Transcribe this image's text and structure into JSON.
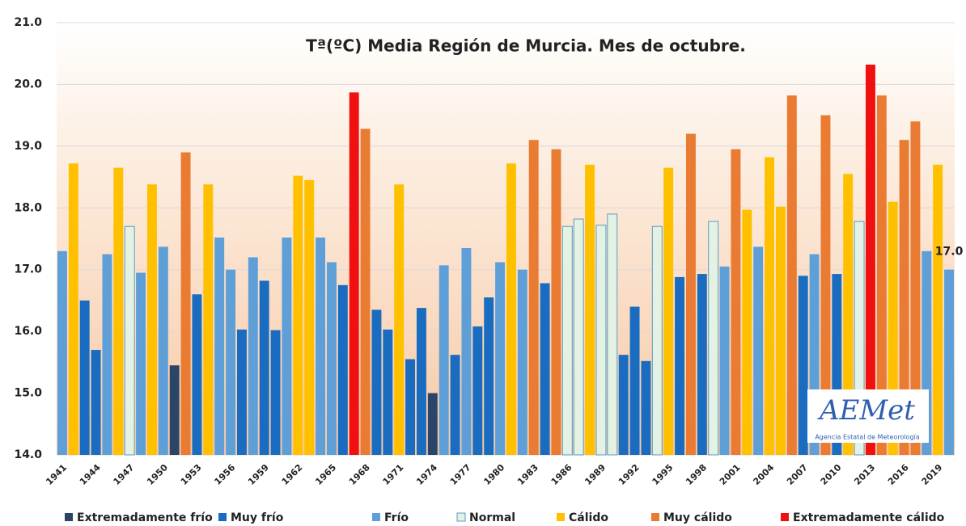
{
  "chart_data": {
    "type": "bar",
    "title": "Tª(ºC) Media Región de Murcia. Mes de octubre.",
    "categories": [
      "1941",
      null,
      null,
      "1944",
      null,
      null,
      "1947",
      null,
      null,
      "1950",
      null,
      null,
      "1953",
      null,
      null,
      "1956",
      null,
      null,
      "1959",
      null,
      null,
      "1962",
      null,
      null,
      "1965",
      null,
      null,
      "1968",
      null,
      null,
      "1971",
      null,
      null,
      "1974",
      null,
      null,
      "1977",
      null,
      null,
      "1980",
      null,
      null,
      "1983",
      null,
      null,
      "1986",
      null,
      null,
      "1989",
      null,
      null,
      "1992",
      null,
      null,
      "1995",
      null,
      null,
      "1998",
      null,
      null,
      "2001",
      null,
      null,
      "2004",
      null,
      null,
      "2007",
      null,
      null,
      "2010",
      null,
      null,
      "2013",
      null,
      null,
      "2016",
      null,
      null,
      "2019",
      null
    ],
    "values": [
      17.3,
      18.72,
      16.5,
      15.7,
      17.25,
      18.65,
      17.7,
      16.95,
      18.38,
      17.37,
      15.45,
      18.9,
      16.6,
      18.38,
      17.52,
      17.0,
      16.03,
      17.2,
      16.82,
      16.02,
      17.52,
      18.52,
      18.45,
      17.52,
      17.12,
      16.75,
      19.87,
      19.28,
      16.35,
      16.03,
      18.38,
      15.55,
      16.38,
      15.0,
      17.07,
      15.62,
      17.35,
      16.08,
      16.55,
      17.12,
      18.72,
      17.0,
      19.1,
      16.78,
      18.95,
      17.7,
      17.82,
      18.7,
      17.72,
      17.9,
      15.62,
      16.4,
      15.52,
      17.7,
      18.65,
      16.88,
      19.2,
      16.93,
      17.78,
      17.05,
      18.95,
      17.97,
      17.37,
      18.82,
      18.02,
      19.82,
      16.9,
      17.25,
      19.5,
      16.93,
      18.55,
      17.78,
      20.32,
      19.82,
      18.1,
      19.1,
      19.4,
      17.3,
      18.7,
      17.0
    ],
    "value_labels": [
      null,
      null,
      null,
      null,
      null,
      null,
      null,
      null,
      null,
      null,
      null,
      null,
      null,
      null,
      null,
      null,
      null,
      null,
      null,
      null,
      null,
      null,
      null,
      null,
      null,
      null,
      null,
      null,
      null,
      null,
      null,
      null,
      null,
      null,
      null,
      null,
      null,
      null,
      null,
      null,
      null,
      null,
      null,
      null,
      null,
      null,
      null,
      null,
      null,
      null,
      null,
      null,
      null,
      null,
      null,
      null,
      null,
      null,
      null,
      null,
      null,
      null,
      null,
      null,
      null,
      null,
      null,
      null,
      null,
      null,
      null,
      null,
      null,
      null,
      null,
      null,
      null,
      null,
      null,
      "17.0"
    ],
    "bar_class": [
      2,
      4,
      1,
      1,
      2,
      4,
      3,
      2,
      4,
      2,
      0,
      5,
      1,
      4,
      2,
      2,
      1,
      2,
      1,
      1,
      2,
      4,
      4,
      2,
      2,
      1,
      6,
      5,
      1,
      1,
      4,
      1,
      1,
      0,
      2,
      1,
      2,
      1,
      1,
      2,
      4,
      2,
      5,
      1,
      5,
      3,
      3,
      4,
      3,
      3,
      1,
      1,
      1,
      3,
      4,
      1,
      5,
      1,
      3,
      2,
      5,
      4,
      2,
      4,
      4,
      5,
      1,
      2,
      5,
      1,
      4,
      3,
      6,
      5,
      4,
      5,
      5,
      2,
      4,
      2
    ],
    "legend": [
      {
        "name": "Extremadamente frío",
        "color": "#2b4566"
      },
      {
        "name": "Muy frío",
        "color": "#1a6cc0"
      },
      {
        "name": "Frío",
        "color": "#5f9fd8"
      },
      {
        "name": "Normal",
        "color": "#e4f2e4"
      },
      {
        "name": "Cálido",
        "color": "#ffc000"
      },
      {
        "name": "Muy cálido",
        "color": "#e97b32"
      },
      {
        "name": "Extremadamente cálido",
        "color": "#f01010"
      }
    ],
    "ylim": [
      14,
      21
    ],
    "yticks": [
      {
        "value": 14,
        "label": "14.0"
      },
      {
        "value": 15,
        "label": "15.0"
      },
      {
        "value": 16,
        "label": "16.0"
      },
      {
        "value": 17,
        "label": "17.0"
      },
      {
        "value": 18,
        "label": "18.0"
      },
      {
        "value": 19,
        "label": "19.0"
      },
      {
        "value": 20,
        "label": "20.0"
      },
      {
        "value": 21,
        "label": "21.0"
      }
    ],
    "grid": true,
    "logo_text": "AEMet",
    "logo_subtitle": "Agencia Estatal de Meteorología"
  }
}
